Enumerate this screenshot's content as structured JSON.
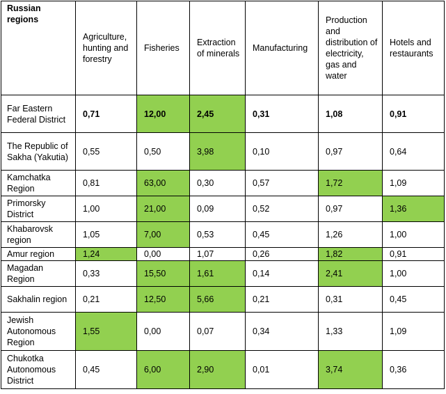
{
  "table": {
    "headers": [
      "Russian regions",
      "Agriculture, hunting and forestry",
      "Fisheries",
      "Extraction of minerals",
      "Manufacturing",
      "Production and distribution of electricity, gas and water",
      "Hotels and restaurants"
    ],
    "highlight_color": "#92d050",
    "rows": [
      {
        "region": "Far Eastern Federal District",
        "values": [
          "0,71",
          "12,00",
          "2,45",
          "0,31",
          "1,08",
          "0,91"
        ]
      },
      {
        "region": "The Republic of Sakha (Yakutia)",
        "values": [
          "0,55",
          "0,50",
          "3,98",
          "0,10",
          "0,97",
          "0,64"
        ]
      },
      {
        "region": "Kamchatka Region",
        "values": [
          "0,81",
          "63,00",
          "0,30",
          "0,57",
          "1,72",
          "1,09"
        ]
      },
      {
        "region": "Primorsky District",
        "values": [
          "1,00",
          "21,00",
          "0,09",
          "0,52",
          "0,97",
          "1,36"
        ]
      },
      {
        "region": "Khabarovsk region",
        "values": [
          "1,05",
          "7,00",
          "0,53",
          "0,45",
          "1,26",
          "1,00"
        ]
      },
      {
        "region": "Amur region",
        "values": [
          "1,24",
          "0,00",
          "1,07",
          "0,26",
          "1,82",
          "0,91"
        ]
      },
      {
        "region": "Magadan Region",
        "values": [
          "0,33",
          "15,50",
          "1,61",
          "0,14",
          "2,41",
          "1,00"
        ]
      },
      {
        "region": "Sakhalin region",
        "values": [
          "0,21",
          "12,50",
          "5,66",
          "0,21",
          "0,31",
          "0,45"
        ]
      },
      {
        "region": "Jewish Autonomous Region",
        "values": [
          "1,55",
          "0,00",
          "0,07",
          "0,34",
          "1,33",
          "1,09"
        ]
      },
      {
        "region": "Chukotka Autonomous District",
        "values": [
          "0,45",
          "6,00",
          "2,90",
          "0,01",
          "3,74",
          "0,36"
        ]
      }
    ]
  }
}
